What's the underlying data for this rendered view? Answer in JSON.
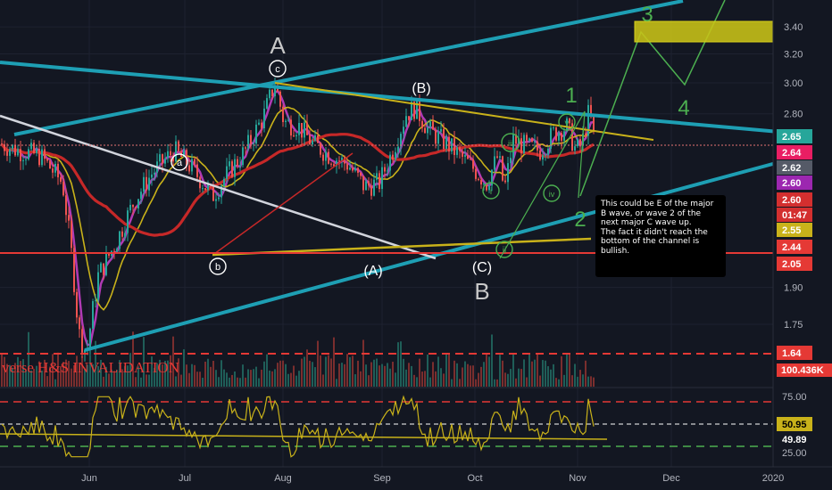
{
  "chart_data": {
    "type": "candlestick",
    "x_ticks": [
      "Jun",
      "Jul",
      "Aug",
      "Sep",
      "Oct",
      "Nov",
      "Dec",
      "2020"
    ],
    "price_ticks": [
      3.4,
      3.2,
      3.0,
      2.8,
      1.9,
      1.75
    ],
    "price_tick_labels": [
      "3.40",
      "3.20",
      "3.00",
      "2.80",
      "1.90",
      "1.75"
    ],
    "ylim": [
      1.55,
      3.52
    ],
    "tags": [
      {
        "value": 2.65,
        "label": "2.65",
        "color": "#26a69a"
      },
      {
        "value": 2.64,
        "label": "2.64",
        "color": "#e91e63"
      },
      {
        "value": 2.62,
        "label": "2.62",
        "color": "#555a67"
      },
      {
        "value": 2.6,
        "label": "2.60",
        "color": "#9c27b0"
      },
      {
        "value": 2.6,
        "label": "2.60",
        "color": "#d32f2f"
      },
      {
        "value": 2.57,
        "label": "01:47",
        "color": "#d32f2f"
      },
      {
        "value": 2.55,
        "label": "2.55",
        "color": "#c9b21a"
      },
      {
        "value": 2.44,
        "label": "2.44",
        "color": "#e53935"
      },
      {
        "value": 2.05,
        "label": "2.05",
        "color": "#e53935"
      },
      {
        "value": 1.64,
        "label": "1.64",
        "color": "#e53935"
      }
    ],
    "volume_tag": "100.436K",
    "waves": [
      {
        "label": "A",
        "color": "#c8c8c8",
        "size": 26
      },
      {
        "label": "(B)",
        "color": "#ffffff",
        "size": 16
      },
      {
        "label": "(A)",
        "color": "#ffffff",
        "size": 16
      },
      {
        "label": "(C)",
        "color": "#ffffff",
        "size": 16
      },
      {
        "label": "B",
        "color": "#c8c8c8",
        "size": 26
      },
      {
        "label": "1",
        "color": "#4caf50",
        "size": 24
      },
      {
        "label": "2",
        "color": "#4caf50",
        "size": 24
      },
      {
        "label": "3",
        "color": "#4caf50",
        "size": 24
      },
      {
        "label": "4",
        "color": "#4caf50",
        "size": 24
      }
    ],
    "circled_labels": [
      {
        "label": "a",
        "color": "#ffffff"
      },
      {
        "label": "b",
        "color": "#ffffff"
      },
      {
        "label": "c",
        "color": "#ffffff"
      },
      {
        "label": "i",
        "color": "#4caf50"
      },
      {
        "label": "ii",
        "color": "#4caf50"
      },
      {
        "label": "iii",
        "color": "#4caf50"
      },
      {
        "label": "iv",
        "color": "#4caf50"
      },
      {
        "label": "v",
        "color": "#4caf50"
      }
    ],
    "invalidation_label": "verse H&S INVALIDATION",
    "oscillator": {
      "ticks": [
        "75.00",
        "25.00"
      ],
      "ylim": [
        20,
        82
      ],
      "tags": [
        {
          "value": 50.95,
          "label": "50.95",
          "color": "#c9b21a"
        },
        {
          "value": 49.89,
          "label": "49.89",
          "color": "#131722"
        }
      ]
    },
    "note_lines": [
      "This could be E of the major B wave, or wave 2 of the next major C wave up.",
      "The fact it didn't reach the bottom of the channel is bullish."
    ],
    "colors": {
      "background": "#131722",
      "bull": "#26a69a",
      "bear": "#ef5350",
      "channel": "#1e9fb4",
      "ema": "#c62828",
      "ma_yellow": "#c9b21a",
      "ma_magenta": "#b03ab5",
      "wave_green": "#4caf50",
      "target_box": "#c9c417"
    }
  }
}
